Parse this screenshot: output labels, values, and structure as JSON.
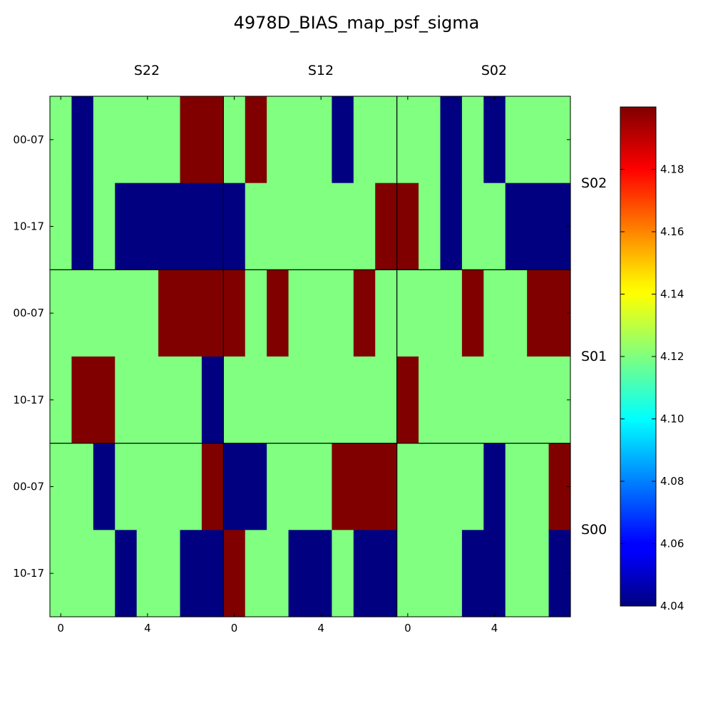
{
  "chart_data": {
    "type": "heatmap",
    "title": "4978D_BIAS_map_psf_sigma",
    "column_labels": [
      "S22",
      "S12",
      "S02"
    ],
    "row_labels": [
      "S02",
      "S01",
      "S00"
    ],
    "x_ticks": [
      "0",
      "4"
    ],
    "y_ticks": [
      "00-07",
      "10-17"
    ],
    "colorbar": {
      "min": 4.04,
      "max": 4.2,
      "ticks": [
        "4.04",
        "4.06",
        "4.08",
        "4.10",
        "4.12",
        "4.14",
        "4.16",
        "4.18"
      ],
      "colormap": "jet"
    },
    "cells_per_panel": {
      "cols": 8,
      "rows": 2
    },
    "panels": [
      {
        "row": "S02",
        "col": "S22",
        "values": [
          [
            4.12,
            4.04,
            4.12,
            4.12,
            4.12,
            4.12,
            4.2,
            4.2
          ],
          [
            4.12,
            4.04,
            4.12,
            4.04,
            4.04,
            4.04,
            4.04,
            4.04
          ]
        ]
      },
      {
        "row": "S02",
        "col": "S12",
        "values": [
          [
            4.12,
            4.2,
            4.12,
            4.12,
            4.12,
            4.04,
            4.12,
            4.12
          ],
          [
            4.04,
            4.12,
            4.12,
            4.12,
            4.12,
            4.12,
            4.12,
            4.2
          ]
        ]
      },
      {
        "row": "S02",
        "col": "S02",
        "values": [
          [
            4.12,
            4.12,
            4.04,
            4.12,
            4.04,
            4.12,
            4.12,
            4.12
          ],
          [
            4.2,
            4.12,
            4.04,
            4.12,
            4.12,
            4.04,
            4.04,
            4.04
          ]
        ]
      },
      {
        "row": "S01",
        "col": "S22",
        "values": [
          [
            4.12,
            4.12,
            4.12,
            4.12,
            4.12,
            4.2,
            4.2,
            4.2
          ],
          [
            4.12,
            4.2,
            4.2,
            4.12,
            4.12,
            4.12,
            4.12,
            4.04
          ]
        ]
      },
      {
        "row": "S01",
        "col": "S12",
        "values": [
          [
            4.2,
            4.12,
            4.2,
            4.12,
            4.12,
            4.12,
            4.2,
            4.12
          ],
          [
            4.12,
            4.12,
            4.12,
            4.12,
            4.12,
            4.12,
            4.12,
            4.12
          ]
        ]
      },
      {
        "row": "S01",
        "col": "S02",
        "values": [
          [
            4.12,
            4.12,
            4.12,
            4.2,
            4.12,
            4.12,
            4.2,
            4.2
          ],
          [
            4.2,
            4.12,
            4.12,
            4.12,
            4.12,
            4.12,
            4.12,
            4.12
          ]
        ]
      },
      {
        "row": "S00",
        "col": "S22",
        "values": [
          [
            4.12,
            4.12,
            4.04,
            4.12,
            4.12,
            4.12,
            4.12,
            4.2
          ],
          [
            4.12,
            4.12,
            4.12,
            4.04,
            4.12,
            4.12,
            4.04,
            4.04
          ]
        ]
      },
      {
        "row": "S00",
        "col": "S12",
        "values": [
          [
            4.04,
            4.04,
            4.12,
            4.12,
            4.12,
            4.2,
            4.2,
            4.2
          ],
          [
            4.2,
            4.12,
            4.12,
            4.04,
            4.04,
            4.12,
            4.04,
            4.04
          ]
        ]
      },
      {
        "row": "S00",
        "col": "S02",
        "values": [
          [
            4.12,
            4.12,
            4.12,
            4.12,
            4.04,
            4.12,
            4.12,
            4.2
          ],
          [
            4.12,
            4.12,
            4.12,
            4.04,
            4.04,
            4.12,
            4.12,
            4.04
          ]
        ]
      }
    ]
  }
}
